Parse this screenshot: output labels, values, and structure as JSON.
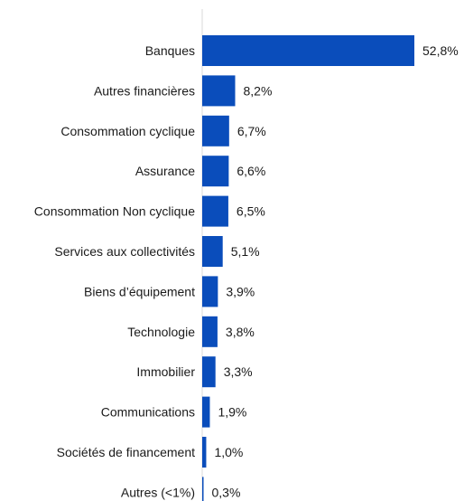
{
  "chart_data": {
    "type": "bar",
    "orientation": "horizontal",
    "categories": [
      "Banques",
      "Autres financières",
      "Consommation cyclique",
      "Assurance",
      "Consommation Non cyclique",
      "Services aux collectivités",
      "Biens d’équipement",
      "Technologie",
      "Immobilier",
      "Communications",
      "Sociétés de financement",
      "Autres (<1%)"
    ],
    "values": [
      52.8,
      8.2,
      6.7,
      6.6,
      6.5,
      5.1,
      3.9,
      3.8,
      3.3,
      1.9,
      1.0,
      0.3
    ],
    "value_labels": [
      "52,8%",
      "8,2%",
      "6,7%",
      "6,6%",
      "6,5%",
      "5,1%",
      "3,9%",
      "3,8%",
      "3,3%",
      "1,9%",
      "1,0%",
      "0,3%"
    ],
    "title": "",
    "xlabel": "",
    "ylabel": "",
    "xlim": [
      0,
      52.8
    ],
    "grid": false,
    "legend": "none",
    "colors": {
      "bar": "#0a4dbb",
      "axis": "#d9d9d9",
      "text": "#1a1a1a"
    }
  }
}
